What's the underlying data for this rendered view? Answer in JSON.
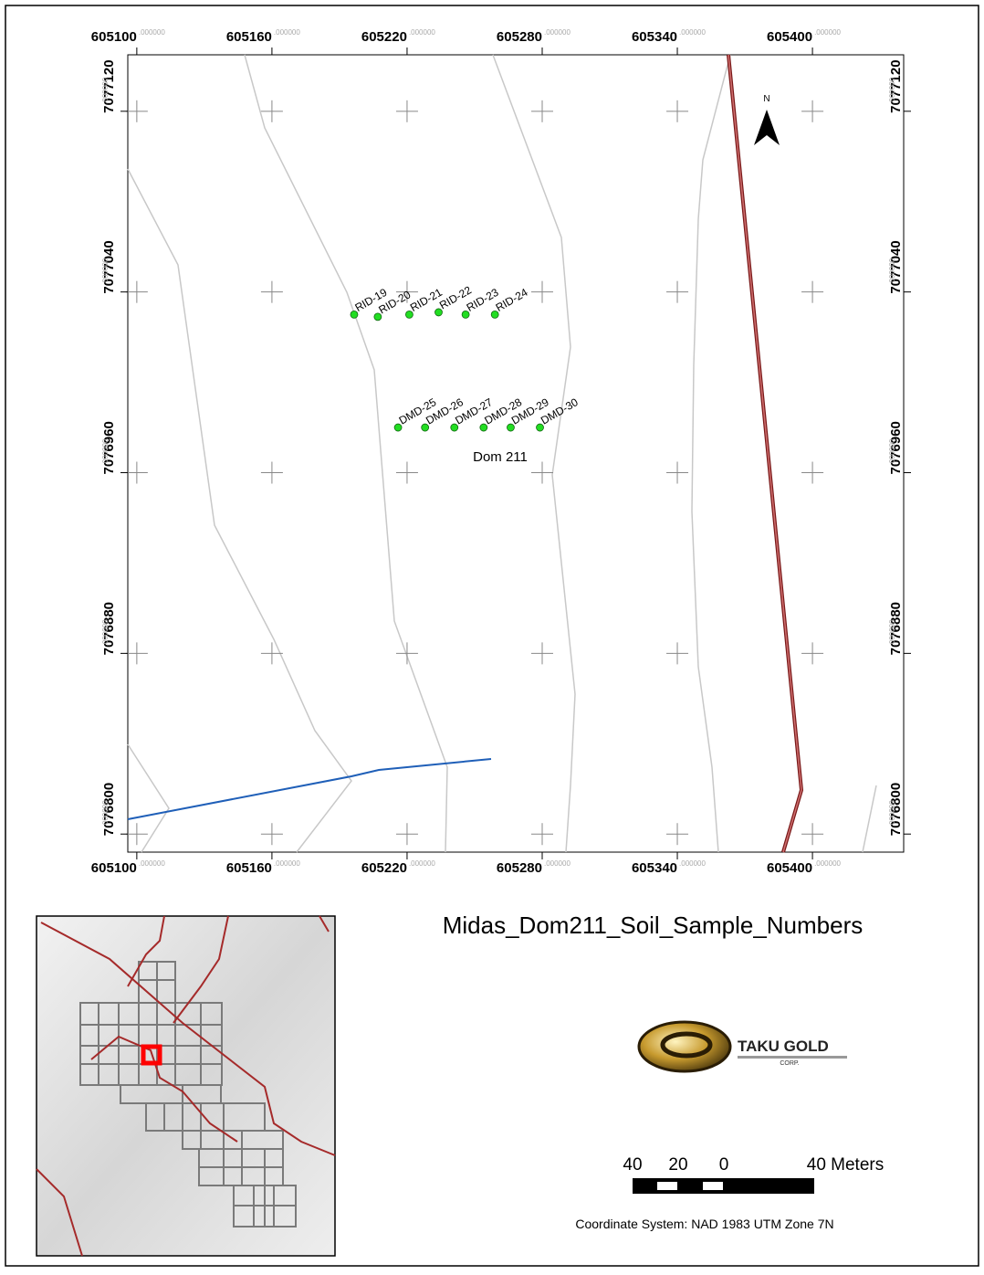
{
  "map": {
    "xlim": [
      605096,
      605440.5
    ],
    "ylim": [
      7076792,
      7077145
    ],
    "x_ticks": [
      605100,
      605160,
      605220,
      605280,
      605340,
      605400
    ],
    "y_ticks": [
      7077120,
      7077040,
      7076960,
      7076880,
      7076800
    ],
    "tick_suffix": ".000000",
    "north": "N",
    "samples": [
      {
        "name": "RID-19",
        "x": 605196.5,
        "y": 7077030
      },
      {
        "name": "RID-20",
        "x": 605207,
        "y": 7077029
      },
      {
        "name": "RID-21",
        "x": 605221,
        "y": 7077030
      },
      {
        "name": "RID-22",
        "x": 605234,
        "y": 7077031
      },
      {
        "name": "RID-23",
        "x": 605246,
        "y": 7077030
      },
      {
        "name": "RID-24",
        "x": 605259,
        "y": 7077030
      },
      {
        "name": "DMD-25",
        "x": 605216,
        "y": 7076980
      },
      {
        "name": "DMD-26",
        "x": 605228,
        "y": 7076980
      },
      {
        "name": "DMD-27",
        "x": 605241,
        "y": 7076980
      },
      {
        "name": "DMD-28",
        "x": 605254,
        "y": 7076980
      },
      {
        "name": "DMD-29",
        "x": 605266,
        "y": 7076980
      },
      {
        "name": "DMD-30",
        "x": 605279,
        "y": 7076980
      }
    ],
    "area_label": "Dom 211"
  },
  "title": "Midas_Dom211_Soil_Sample_Numbers",
  "logo": {
    "name": "TAKU GOLD",
    "sub": "CORP."
  },
  "scale_bar": {
    "labels": [
      "40",
      "20",
      "0",
      "40 Meters"
    ]
  },
  "coordinate_system": "Coordinate System: NAD 1983 UTM Zone 7N"
}
